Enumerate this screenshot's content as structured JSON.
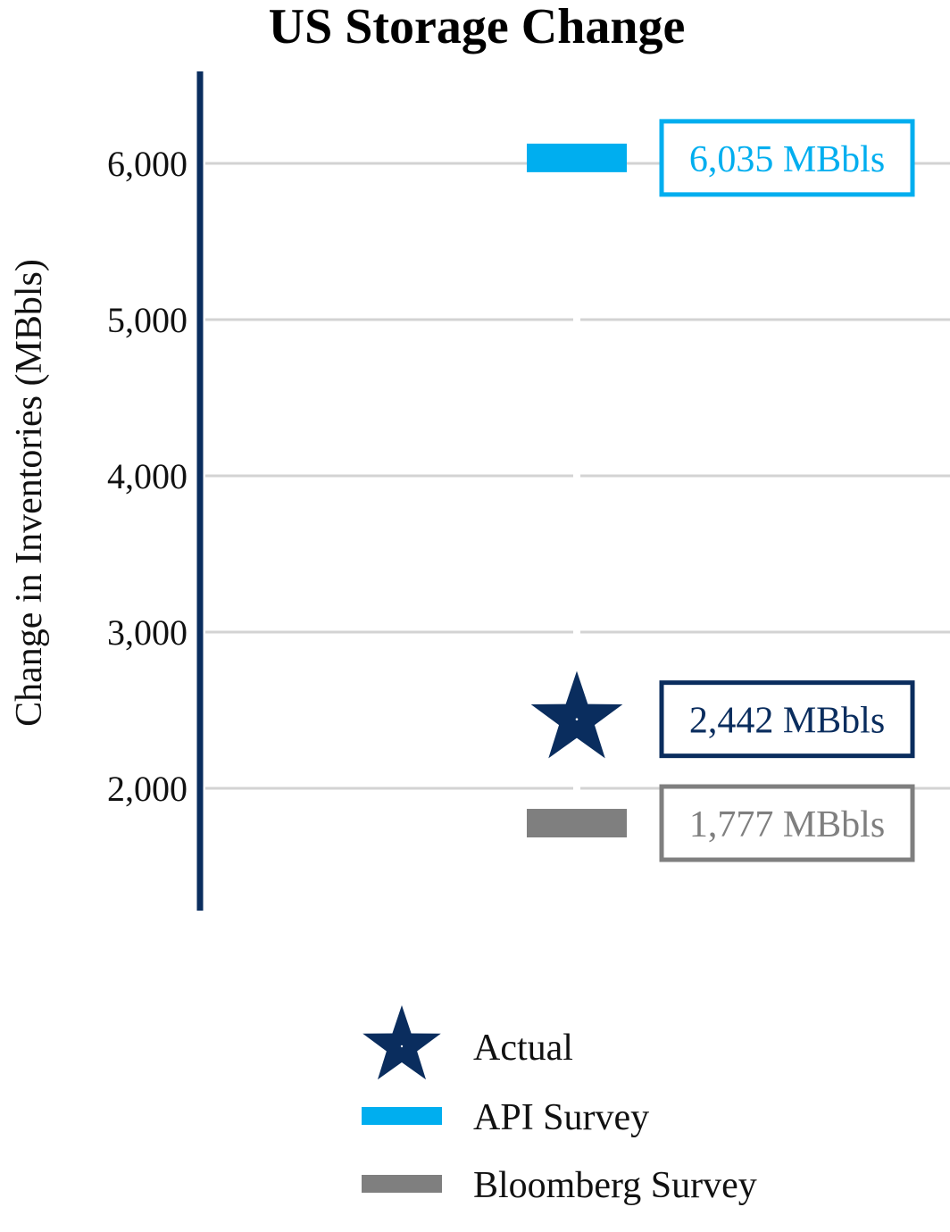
{
  "chart_data": {
    "type": "scatter",
    "title": "US Storage Change",
    "ylabel": "Change in Inventories (MBbls)",
    "xlabel": "",
    "ylim": [
      1200,
      6600
    ],
    "yticks": [
      2000,
      3000,
      4000,
      5000,
      6000
    ],
    "ytick_labels": [
      "2,000",
      "3,000",
      "4,000",
      "5,000",
      "6,000"
    ],
    "grid": true,
    "legend_position": "bottom-center",
    "series": [
      {
        "name": "Actual",
        "marker": "star",
        "color": "#0a2d5e",
        "value": 2442,
        "label": "2,442 MBbls"
      },
      {
        "name": "API Survey",
        "marker": "bar",
        "color": "#00aeef",
        "value": 6035,
        "label": "6,035 MBbls"
      },
      {
        "name": "Bloomberg Survey",
        "marker": "bar",
        "color": "#7f7f7f",
        "value": 1777,
        "label": "1,777 MBbls"
      }
    ]
  }
}
